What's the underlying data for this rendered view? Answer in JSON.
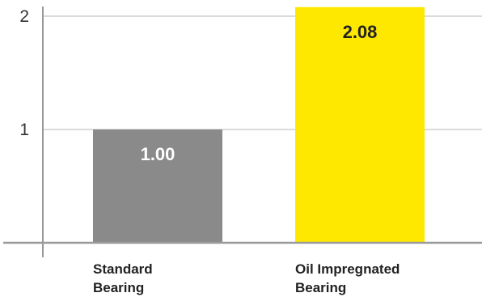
{
  "chart_data": {
    "type": "bar",
    "categories": [
      [
        "Standard",
        "Bearing"
      ],
      [
        "Oil Impregnated",
        "Bearing"
      ]
    ],
    "values": [
      1.0,
      2.08
    ],
    "data_labels": [
      "1.00",
      "2.08"
    ],
    "colors": [
      "#8a8a8a",
      "#ffe800"
    ],
    "data_label_colors": [
      "#ffffff",
      "#222222"
    ],
    "yticks": [
      {
        "value": 1,
        "label": "1"
      },
      {
        "value": 2,
        "label": "2"
      }
    ],
    "ylim": [
      0,
      2.1
    ],
    "grid": true,
    "title": "",
    "xlabel": "",
    "ylabel": ""
  }
}
